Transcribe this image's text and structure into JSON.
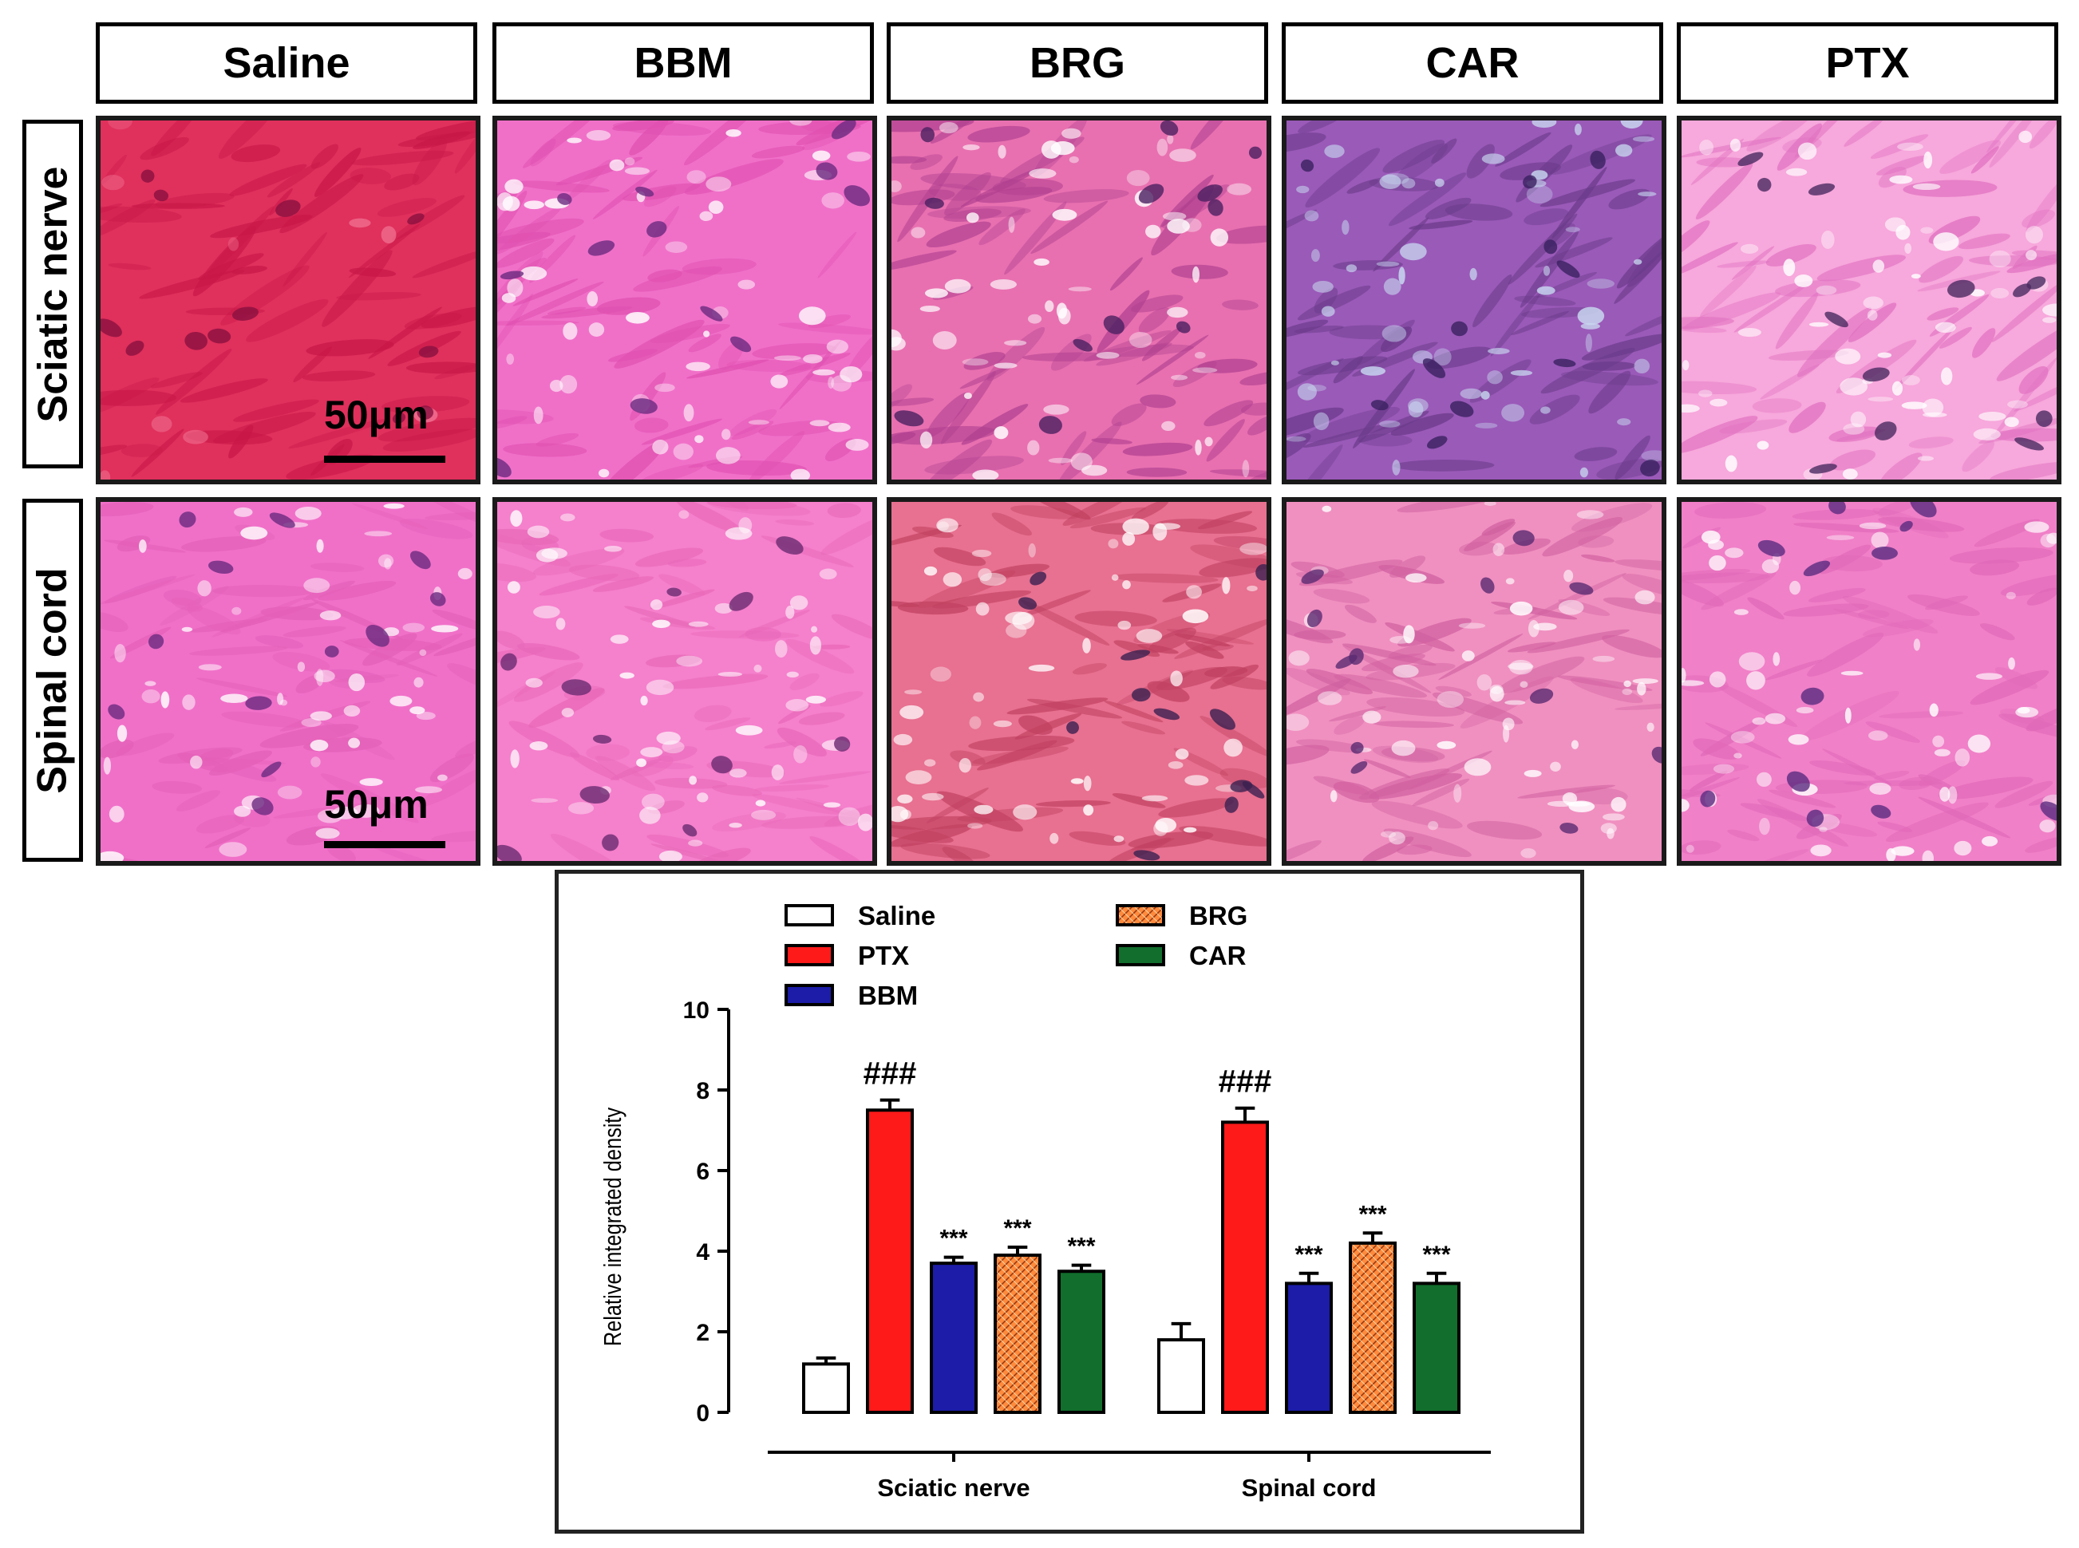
{
  "columns": [
    "Saline",
    "BBM",
    "BRG",
    "CAR",
    "PTX"
  ],
  "rows": [
    "Sciatic nerve",
    "Spinal cord"
  ],
  "scale_bar": "50μm",
  "colors": {
    "saline_fill": "#ffffff",
    "ptx_fill": "#ff1a1a",
    "bbm_fill": "#1c1ca8",
    "brg_fill": "#ff8a3c",
    "car_fill": "#116e2c",
    "tissue_pink": "#f06cc4",
    "tissue_red": "#e8305a",
    "nucleus_purple": "#5a2a80"
  },
  "legend": [
    {
      "name": "Saline",
      "color": "#ffffff",
      "pattern": "none"
    },
    {
      "name": "PTX",
      "color": "#ff1a1a",
      "pattern": "none"
    },
    {
      "name": "BBM",
      "color": "#1c1ca8",
      "pattern": "none"
    },
    {
      "name": "BRG",
      "color": "#ff8a3c",
      "pattern": "crosshatch"
    },
    {
      "name": "CAR",
      "color": "#116e2c",
      "pattern": "none"
    }
  ],
  "chart_data": {
    "type": "bar",
    "ylabel": "Relative integrated density",
    "xlabel": "",
    "ylim": [
      0,
      10
    ],
    "yticks": [
      0,
      2,
      4,
      6,
      8,
      10
    ],
    "categories": [
      "Sciatic nerve",
      "Spinal cord"
    ],
    "series": [
      {
        "name": "Saline",
        "values": [
          1.2,
          1.8
        ],
        "errors": [
          0.15,
          0.4
        ],
        "annotations": [
          "",
          ""
        ]
      },
      {
        "name": "PTX",
        "values": [
          7.5,
          7.2
        ],
        "errors": [
          0.25,
          0.35
        ],
        "annotations": [
          "###",
          "###"
        ]
      },
      {
        "name": "BBM",
        "values": [
          3.7,
          3.2
        ],
        "errors": [
          0.15,
          0.25
        ],
        "annotations": [
          "***",
          "***"
        ]
      },
      {
        "name": "BRG",
        "values": [
          3.9,
          4.2
        ],
        "errors": [
          0.2,
          0.25
        ],
        "annotations": [
          "***",
          "***"
        ]
      },
      {
        "name": "CAR",
        "values": [
          3.5,
          3.2
        ],
        "errors": [
          0.15,
          0.25
        ],
        "annotations": [
          "***",
          "***"
        ]
      }
    ],
    "legend_position": "top"
  }
}
